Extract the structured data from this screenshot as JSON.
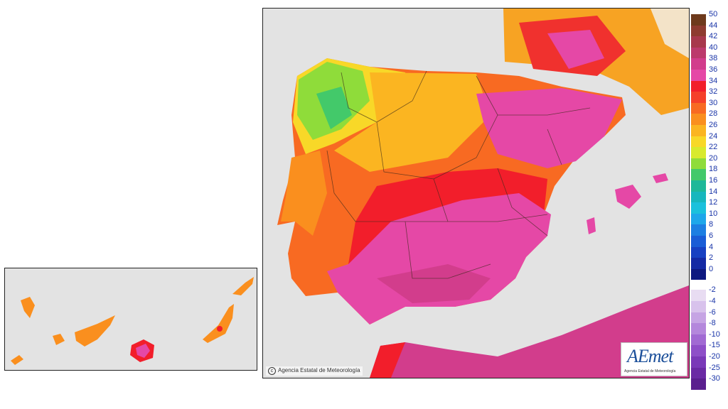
{
  "credit": {
    "text": "Agencia Estatal de Meteorología"
  },
  "logo": {
    "word": "AEmet",
    "subtitle": "Agencia Estatal de Meteorología"
  },
  "legend": {
    "positive": [
      {
        "label": "50",
        "color": "#6e3a1c"
      },
      {
        "label": "44",
        "color": "#8e3b2f"
      },
      {
        "label": "42",
        "color": "#a7384c"
      },
      {
        "label": "40",
        "color": "#bc3a6c"
      },
      {
        "label": "38",
        "color": "#d23d8c"
      },
      {
        "label": "36",
        "color": "#e548a6"
      },
      {
        "label": "34",
        "color": "#f21e2b"
      },
      {
        "label": "32",
        "color": "#f5402a"
      },
      {
        "label": "30",
        "color": "#f86a22"
      },
      {
        "label": "28",
        "color": "#fa8f1e"
      },
      {
        "label": "26",
        "color": "#fbb521"
      },
      {
        "label": "24",
        "color": "#f8d828"
      },
      {
        "label": "22",
        "color": "#d8ea2d"
      },
      {
        "label": "20",
        "color": "#8fdc3a"
      },
      {
        "label": "18",
        "color": "#43c96a"
      },
      {
        "label": "16",
        "color": "#1eb899"
      },
      {
        "label": "14",
        "color": "#17b7bd"
      },
      {
        "label": "12",
        "color": "#1bc1dc"
      },
      {
        "label": "10",
        "color": "#1ea7ea"
      },
      {
        "label": "8",
        "color": "#1d7fe2"
      },
      {
        "label": "6",
        "color": "#1a5dd6"
      },
      {
        "label": "4",
        "color": "#1740c2"
      },
      {
        "label": "2",
        "color": "#1429a4"
      },
      {
        "label": "0",
        "color": "#0d1880"
      }
    ],
    "negative": [
      {
        "label": "-2",
        "color": "#e8dcf2"
      },
      {
        "label": "-4",
        "color": "#d8c2ec"
      },
      {
        "label": "-6",
        "color": "#c6a4e4"
      },
      {
        "label": "-8",
        "color": "#b487dc"
      },
      {
        "label": "-10",
        "color": "#a16ad3"
      },
      {
        "label": "-15",
        "color": "#8e4fc8"
      },
      {
        "label": "-20",
        "color": "#7a39b8"
      },
      {
        "label": "-25",
        "color": "#6a2aa4"
      },
      {
        "label": "-30",
        "color": "#5a1f8e"
      }
    ]
  },
  "colors": {
    "sea": "#e3e3e3",
    "france": "#f3e3c8",
    "border": "#3b2a1a"
  }
}
